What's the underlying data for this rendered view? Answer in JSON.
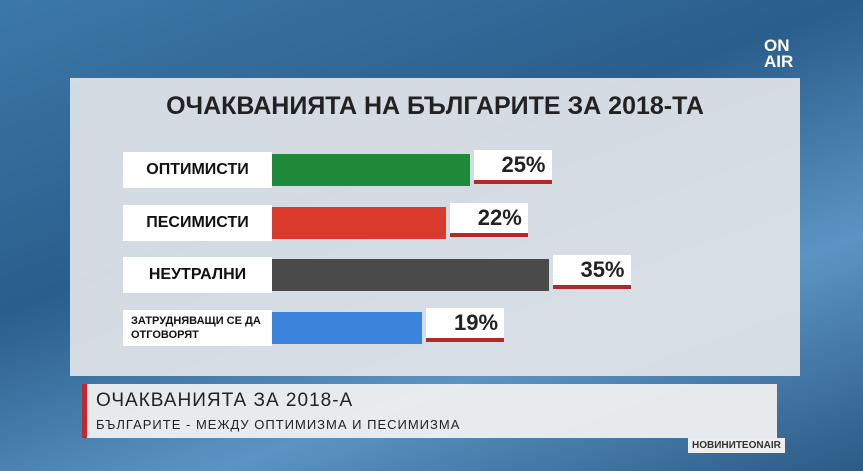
{
  "chart_data": {
    "type": "bar",
    "title": "ОЧАКВАНИЯТА НА БЪЛГАРИТЕ ЗА 2018-ТА",
    "categories": [
      "ОПТИМИСТИ",
      "ПЕСИМИСТИ",
      "НЕУТРАЛНИ",
      "ЗАТРУДНЯВАЩИ СЕ ДА ОТГОВОРЯТ"
    ],
    "values": [
      25,
      22,
      35,
      19
    ],
    "value_labels": [
      "25%",
      "22%",
      "35%",
      "19%"
    ],
    "colors": [
      "#1e8a3a",
      "#d93a2b",
      "#4a4a4a",
      "#3a84dc"
    ]
  },
  "logo": "ON AIR",
  "lower_third": {
    "headline": "ОЧАКВАНИЯТА ЗА 2018-А",
    "subline": "БЪЛГАРИТЕ - МЕЖДУ ОПТИМИЗМА И ПЕСИМИЗМА"
  },
  "badge": "НОВИНИТЕONAIR"
}
